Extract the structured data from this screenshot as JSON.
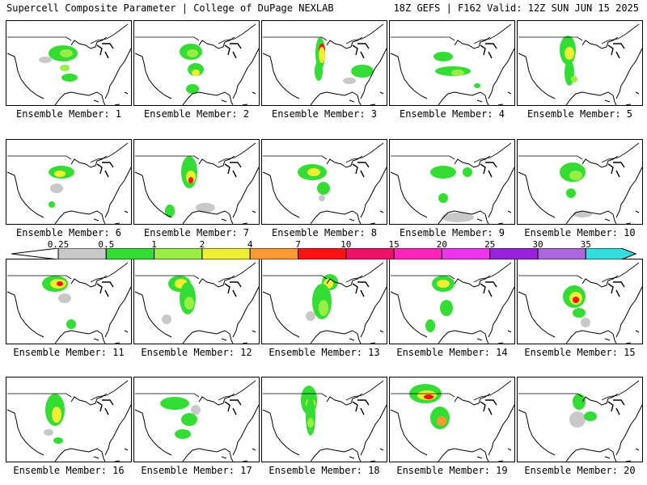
{
  "header": {
    "title": "Supercell Composite Parameter | College of DuPage NEXLAB",
    "run_info": "18Z GEFS | F162 Valid: 12Z SUN JUN 15 2025"
  },
  "members": [
    "Ensemble Member: 1",
    "Ensemble Member: 2",
    "Ensemble Member: 3",
    "Ensemble Member: 4",
    "Ensemble Member: 5",
    "Ensemble Member: 6",
    "Ensemble Member: 7",
    "Ensemble Member: 8",
    "Ensemble Member: 9",
    "Ensemble Member: 10",
    "Ensemble Member: 11",
    "Ensemble Member: 12",
    "Ensemble Member: 13",
    "Ensemble Member: 14",
    "Ensemble Member: 15",
    "Ensemble Member: 16",
    "Ensemble Member: 17",
    "Ensemble Member: 18",
    "Ensemble Member: 19",
    "Ensemble Member: 20"
  ],
  "colorbar": {
    "labels": [
      "0.25",
      "0.5",
      "1",
      "2",
      "4",
      "7",
      "10",
      "15",
      "20",
      "25",
      "30",
      "35"
    ],
    "colors": [
      "#c8c8c8",
      "#33dd33",
      "#99ee44",
      "#eeee33",
      "#ff9933",
      "#ff1111",
      "#ee1166",
      "#ff22bb",
      "#ee33ee",
      "#9922dd",
      "#aa66dd",
      "#33dddd"
    ]
  },
  "colors": {
    "light": "#c8c8c8",
    "green": "#33dd33",
    "yellowgreen": "#99ee44",
    "yellow": "#eeee33",
    "orange": "#ff9933",
    "red": "#ff1111"
  }
}
